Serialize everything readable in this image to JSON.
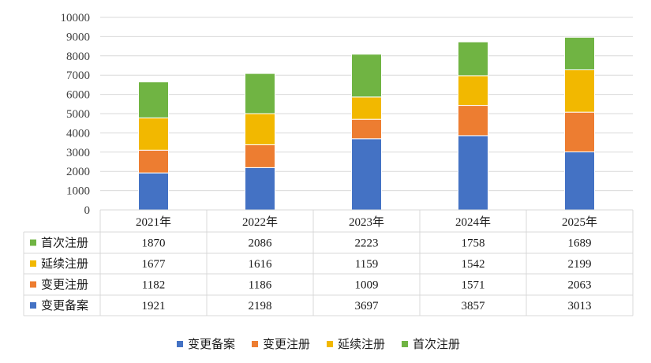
{
  "chart_data": {
    "type": "bar",
    "stacked": true,
    "categories": [
      "2021年",
      "2022年",
      "2023年",
      "2024年",
      "2025年"
    ],
    "series": [
      {
        "name": "变更备案",
        "values": [
          1921,
          2198,
          3697,
          3857,
          3013
        ],
        "color": "#4472C4"
      },
      {
        "name": "变更注册",
        "values": [
          1182,
          1186,
          1009,
          1571,
          2063
        ],
        "color": "#ED7D31"
      },
      {
        "name": "延续注册",
        "values": [
          1677,
          1616,
          1159,
          1542,
          2199
        ],
        "color": "#F2B800"
      },
      {
        "name": "首次注册",
        "values": [
          1870,
          2086,
          2223,
          1758,
          1689
        ],
        "color": "#70B443"
      }
    ],
    "ylim": [
      0,
      10000
    ],
    "yticks": [
      "0",
      "1000",
      "2000",
      "3000",
      "4000",
      "5000",
      "6000",
      "7000",
      "8000",
      "9000",
      "10000"
    ],
    "grid": true,
    "legend_position": "bottom",
    "data_table": true,
    "title": "",
    "xlabel": "",
    "ylabel": ""
  }
}
